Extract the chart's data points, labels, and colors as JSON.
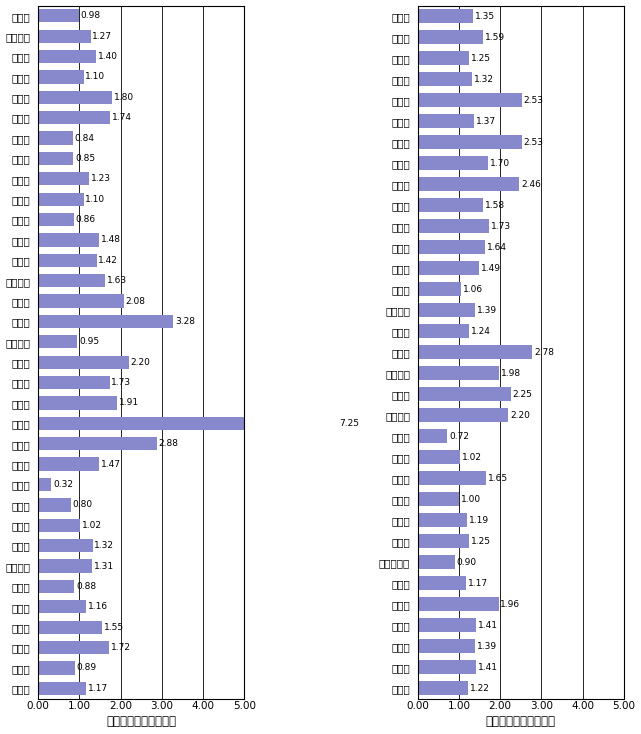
{
  "left_labels": [
    "津　市",
    "四日市市",
    "伊勢市",
    "松阪市",
    "桑名市",
    "上野市",
    "鈴鹿市",
    "名張市",
    "尾鷲市",
    "亀山市",
    "鳥羽市",
    "熊野市",
    "久居市",
    "いなべ市",
    "多度町",
    "長島町",
    "木曽岬町",
    "東員町",
    "菰野町",
    "桶　町",
    "朝日町",
    "川越町",
    "関　町",
    "河芸町",
    "芸濃町",
    "美里村",
    "安濃町",
    "香良洲町",
    "一志町",
    "白山町",
    "嬉野町",
    "美杉村",
    "三重町",
    "飯南町"
  ],
  "left_values": [
    0.98,
    1.27,
    1.4,
    1.1,
    1.8,
    1.74,
    0.84,
    0.85,
    1.23,
    1.1,
    0.86,
    1.48,
    1.42,
    1.63,
    2.08,
    3.28,
    0.95,
    2.2,
    1.73,
    1.91,
    7.25,
    2.88,
    1.47,
    0.32,
    0.8,
    1.02,
    1.32,
    1.31,
    0.88,
    1.16,
    1.55,
    1.72,
    0.89,
    1.17
  ],
  "left_bold": [
    "尾鷲市",
    "長島町"
  ],
  "right_labels": [
    "飯高町",
    "多気町",
    "明和町",
    "大台町",
    "磐和村",
    "宮川村",
    "玉城町",
    "二見町",
    "小俣町",
    "南勢町",
    "南島町",
    "大宮町",
    "紀勢町",
    "御薗村",
    "大内山村",
    "度会町",
    "伊賀町",
    "島ヶ原村",
    "阿山町",
    "大山田村",
    "青山町",
    "浜島町",
    "大王町",
    "志摩町",
    "阿児町",
    "磯部町",
    "紀伊長島町",
    "海山町",
    "御浜町",
    "紀宝町",
    "紀和町",
    "鵜殿村",
    "県　計"
  ],
  "right_values": [
    1.35,
    1.59,
    1.25,
    1.32,
    2.53,
    1.37,
    2.53,
    1.7,
    2.46,
    1.58,
    1.73,
    1.64,
    1.49,
    1.06,
    1.39,
    1.24,
    2.78,
    1.98,
    2.25,
    2.2,
    0.72,
    1.02,
    1.65,
    1.0,
    1.19,
    1.25,
    0.9,
    1.17,
    1.96,
    1.41,
    1.39,
    1.41,
    1.22
  ],
  "right_bold": [
    "磐和村",
    "南島町",
    "鵜殿村"
  ],
  "bar_color": "#8888cc",
  "xlabel": "排出量（１／人・日）",
  "xlim": [
    0,
    5.0
  ],
  "xticks": [
    0.0,
    1.0,
    2.0,
    3.0,
    4.0,
    5.0
  ],
  "xtick_labels": [
    "0.00",
    "1.00",
    "2.00",
    "3.00",
    "4.00",
    "5.00"
  ],
  "vlines": [
    1.0,
    2.0,
    3.0,
    4.0,
    5.0
  ],
  "background_color": "#ffffff",
  "label_fontsize": 7.5,
  "value_fontsize": 6.5,
  "xlabel_fontsize": 8.5,
  "xtick_fontsize": 7.5,
  "bar_height": 0.65
}
